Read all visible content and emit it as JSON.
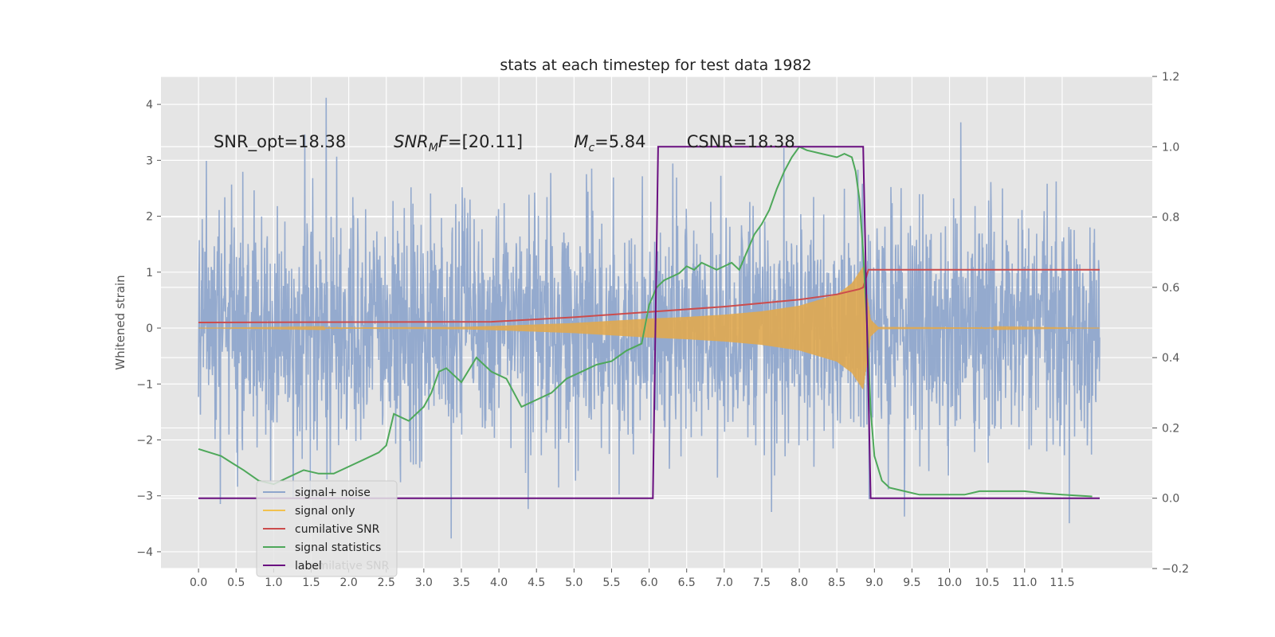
{
  "chart_data": {
    "type": "line",
    "title": "stats at each timestep for test data 1982",
    "ylabel": "Whitened strain",
    "xlim": [
      -0.5,
      12.7
    ],
    "ylim": [
      -4.3,
      4.5
    ],
    "y2lim": [
      -0.2,
      1.2
    ],
    "x_ticks": [
      0.0,
      0.5,
      1.0,
      1.5,
      2.0,
      2.5,
      3.0,
      3.5,
      4.0,
      4.5,
      5.0,
      5.5,
      6.0,
      6.5,
      7.0,
      7.5,
      8.0,
      8.5,
      9.0,
      9.5,
      10.0,
      10.5,
      11.0,
      11.5
    ],
    "x_tick_labels": [
      "0.0",
      "0.5",
      "1.0",
      "1.5",
      "2.0",
      "2.5",
      "3.0",
      "3.5",
      "4.0",
      "4.5",
      "5.0",
      "5.5",
      "6.0",
      "6.5",
      "7.0",
      "7.5",
      "8.0",
      "8.5",
      "9.0",
      "9.5",
      "10.0",
      "10.5",
      "11.0",
      "11.5"
    ],
    "y_ticks": [
      -4,
      -3,
      -2,
      -1,
      0,
      1,
      2,
      3,
      4
    ],
    "y_tick_labels": [
      "−4",
      "−3",
      "−2",
      "−1",
      "0",
      "1",
      "2",
      "3",
      "4"
    ],
    "y2_ticks": [
      -0.2,
      0.0,
      0.2,
      0.4,
      0.6,
      0.8,
      1.0,
      1.2
    ],
    "y2_tick_labels": [
      "−0.2",
      "0.0",
      "0.2",
      "0.4",
      "0.6",
      "0.8",
      "1.0",
      "1.2"
    ],
    "grid": true,
    "legend_position": "lower-left",
    "annotations": [
      {
        "text": "SNR_opt=18.38",
        "x": 0.2,
        "y": 3.35
      },
      {
        "text": "SNR_MF=[20.11]",
        "x": 2.6,
        "y": 3.35,
        "math": "snrmf"
      },
      {
        "text": "M_c=5.84",
        "x": 5.0,
        "y": 3.35,
        "math": "mc"
      },
      {
        "text": "CSNR=18.38",
        "x": 6.5,
        "y": 3.35
      }
    ],
    "series": [
      {
        "name": "signal+ noise",
        "color": "#8fa6cc",
        "axis": "left",
        "kind": "noise",
        "x_range": [
          0.0,
          12.0
        ],
        "typical_amplitude": 2.5,
        "max": 4.12,
        "min": -3.9
      },
      {
        "name": "signal only",
        "color": "#e0a950",
        "axis": "left",
        "kind": "chirp",
        "envelope": [
          [
            0.0,
            0.0
          ],
          [
            3.5,
            0.02
          ],
          [
            4.0,
            0.04
          ],
          [
            5.0,
            0.09
          ],
          [
            6.0,
            0.17
          ],
          [
            6.5,
            0.2
          ],
          [
            7.0,
            0.24
          ],
          [
            7.5,
            0.3
          ],
          [
            8.0,
            0.4
          ],
          [
            8.5,
            0.6
          ],
          [
            8.7,
            0.8
          ],
          [
            8.85,
            1.1
          ],
          [
            8.95,
            0.15
          ],
          [
            9.05,
            0.02
          ],
          [
            12.0,
            0.0
          ]
        ]
      },
      {
        "name": "cumilative SNR",
        "color": "#cc4c4c",
        "axis": "right",
        "x": [
          0.0,
          3.9,
          5.0,
          6.0,
          7.0,
          8.0,
          8.5,
          8.8,
          8.85,
          8.92,
          12.0
        ],
        "y": [
          0.5,
          0.502,
          0.515,
          0.53,
          0.545,
          0.565,
          0.58,
          0.595,
          0.6,
          0.65,
          0.65
        ]
      },
      {
        "name": "signal statistics",
        "color": "#4ea85a",
        "axis": "right",
        "x": [
          0.0,
          0.15,
          0.3,
          0.45,
          0.6,
          0.8,
          1.0,
          1.2,
          1.4,
          1.6,
          1.8,
          2.0,
          2.2,
          2.4,
          2.5,
          2.6,
          2.8,
          3.0,
          3.1,
          3.2,
          3.3,
          3.5,
          3.7,
          3.9,
          4.1,
          4.3,
          4.5,
          4.7,
          4.9,
          5.1,
          5.3,
          5.5,
          5.7,
          5.9,
          6.0,
          6.1,
          6.2,
          6.3,
          6.4,
          6.5,
          6.6,
          6.7,
          6.8,
          6.9,
          7.0,
          7.1,
          7.2,
          7.3,
          7.4,
          7.5,
          7.6,
          7.7,
          7.8,
          7.9,
          8.0,
          8.1,
          8.3,
          8.5,
          8.6,
          8.7,
          8.75,
          8.8,
          8.85,
          8.9,
          8.95,
          9.0,
          9.1,
          9.2,
          9.4,
          9.6,
          9.8,
          10.0,
          10.2,
          10.4,
          10.6,
          10.8,
          11.0,
          11.2,
          11.5,
          11.9
        ],
        "y": [
          0.14,
          0.13,
          0.12,
          0.1,
          0.08,
          0.05,
          0.04,
          0.06,
          0.08,
          0.07,
          0.07,
          0.09,
          0.11,
          0.13,
          0.15,
          0.24,
          0.22,
          0.26,
          0.3,
          0.36,
          0.37,
          0.33,
          0.4,
          0.36,
          0.34,
          0.26,
          0.28,
          0.3,
          0.34,
          0.36,
          0.38,
          0.39,
          0.42,
          0.44,
          0.55,
          0.6,
          0.62,
          0.63,
          0.64,
          0.66,
          0.65,
          0.67,
          0.66,
          0.65,
          0.66,
          0.67,
          0.65,
          0.7,
          0.75,
          0.78,
          0.82,
          0.88,
          0.93,
          0.97,
          1.0,
          0.99,
          0.98,
          0.97,
          0.98,
          0.97,
          0.93,
          0.85,
          0.7,
          0.5,
          0.25,
          0.12,
          0.05,
          0.03,
          0.02,
          0.01,
          0.01,
          0.01,
          0.01,
          0.02,
          0.02,
          0.02,
          0.02,
          0.015,
          0.01,
          0.005
        ]
      },
      {
        "name": "label",
        "color": "#6a0f80",
        "axis": "right",
        "x": [
          0.0,
          6.05,
          6.12,
          8.85,
          8.95,
          12.0
        ],
        "y": [
          0.0,
          0.0,
          1.0,
          1.0,
          0.0,
          0.0
        ]
      }
    ]
  },
  "legend": {
    "items": [
      {
        "label": "signal+ noise",
        "color": "#8fa6cc"
      },
      {
        "label": "signal only",
        "color": "#f2c14e"
      },
      {
        "label": "cumilative SNR",
        "color": "#cc4c4c"
      },
      {
        "label": "signal statistics",
        "color": "#4ea85a"
      },
      {
        "label": "label",
        "color": "#6a0f80"
      }
    ],
    "ghost_text": "cumilative SNR"
  }
}
